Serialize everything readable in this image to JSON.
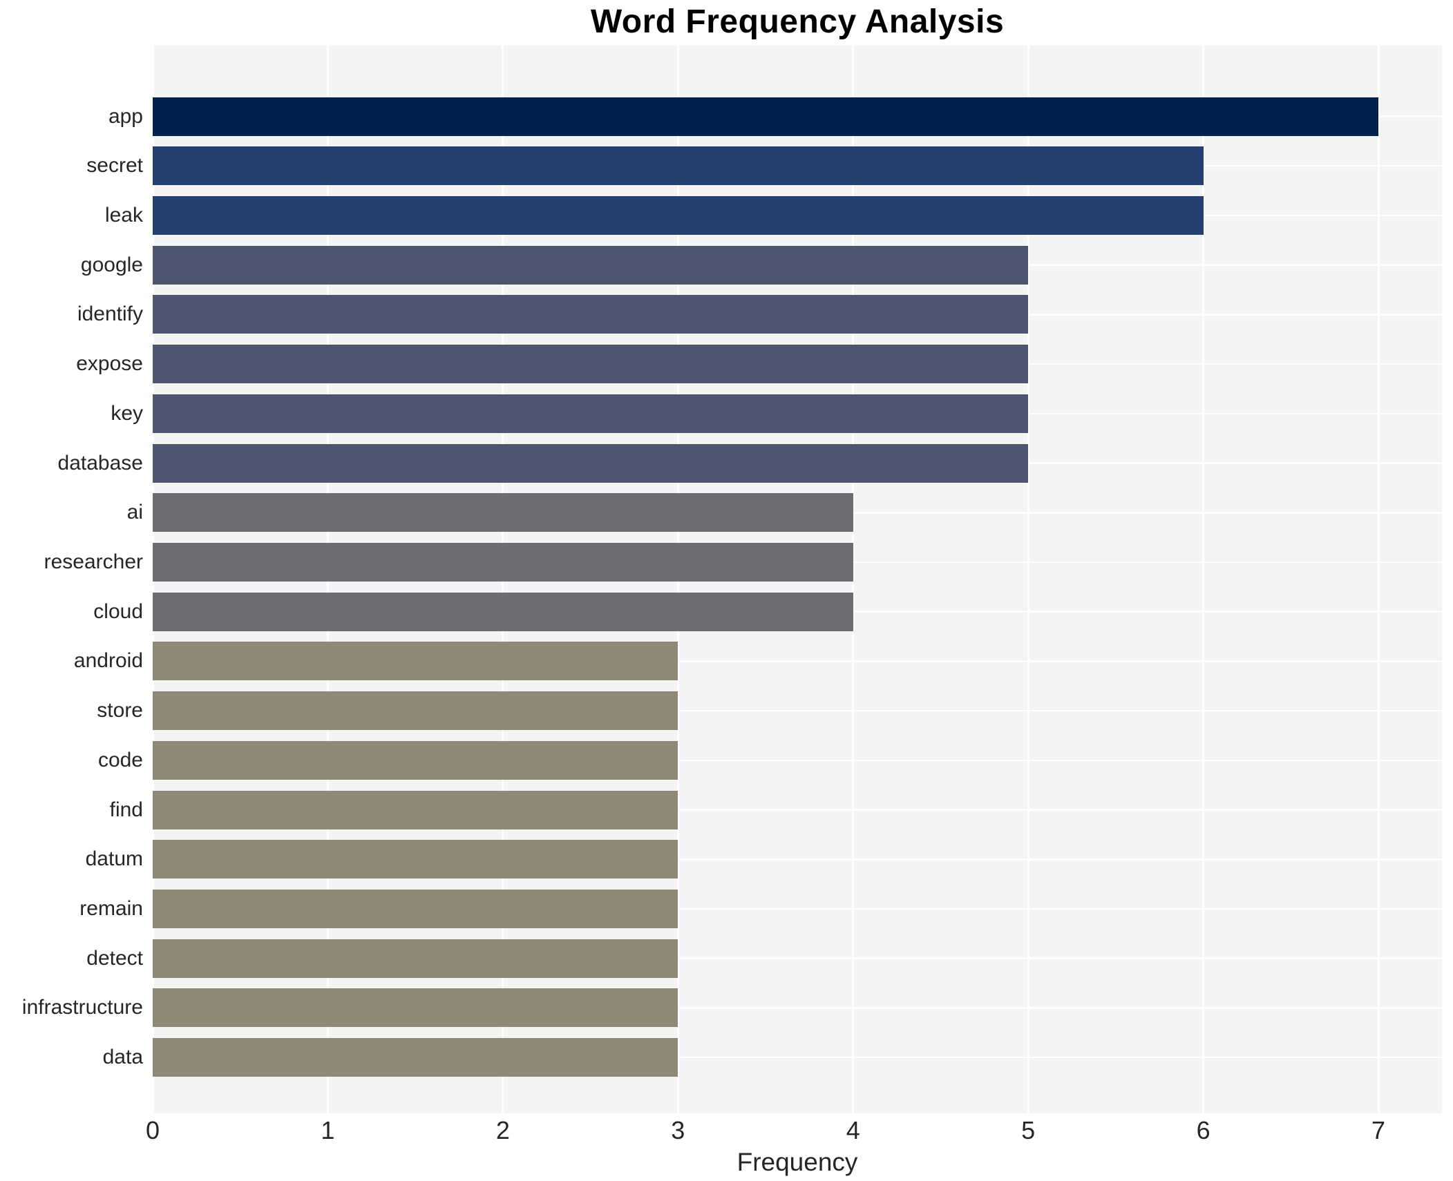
{
  "chart_data": {
    "type": "bar",
    "orientation": "horizontal",
    "title": "Word Frequency Analysis",
    "xlabel": "Frequency",
    "ylabel": "",
    "categories": [
      "app",
      "secret",
      "leak",
      "google",
      "identify",
      "expose",
      "key",
      "database",
      "ai",
      "researcher",
      "cloud",
      "android",
      "store",
      "code",
      "find",
      "datum",
      "remain",
      "detect",
      "infrastructure",
      "data"
    ],
    "values": [
      7,
      6,
      6,
      5,
      5,
      5,
      5,
      5,
      4,
      4,
      4,
      3,
      3,
      3,
      3,
      3,
      3,
      3,
      3,
      3
    ],
    "xticks": [
      "0",
      "1",
      "2",
      "3",
      "4",
      "5",
      "6",
      "7"
    ],
    "xlim": [
      0,
      7.35
    ],
    "grid": true,
    "legend_position": "none",
    "plot_background_color": "#f4f4f5",
    "grid_color": "#ffffff",
    "title_color": "#000000",
    "tick_label_color": "#262626",
    "colors_by_value": {
      "7": "#00224d",
      "6": "#24406e",
      "5": "#4c566f",
      "4": "#6d6d71",
      "3": "#8f8876"
    }
  }
}
